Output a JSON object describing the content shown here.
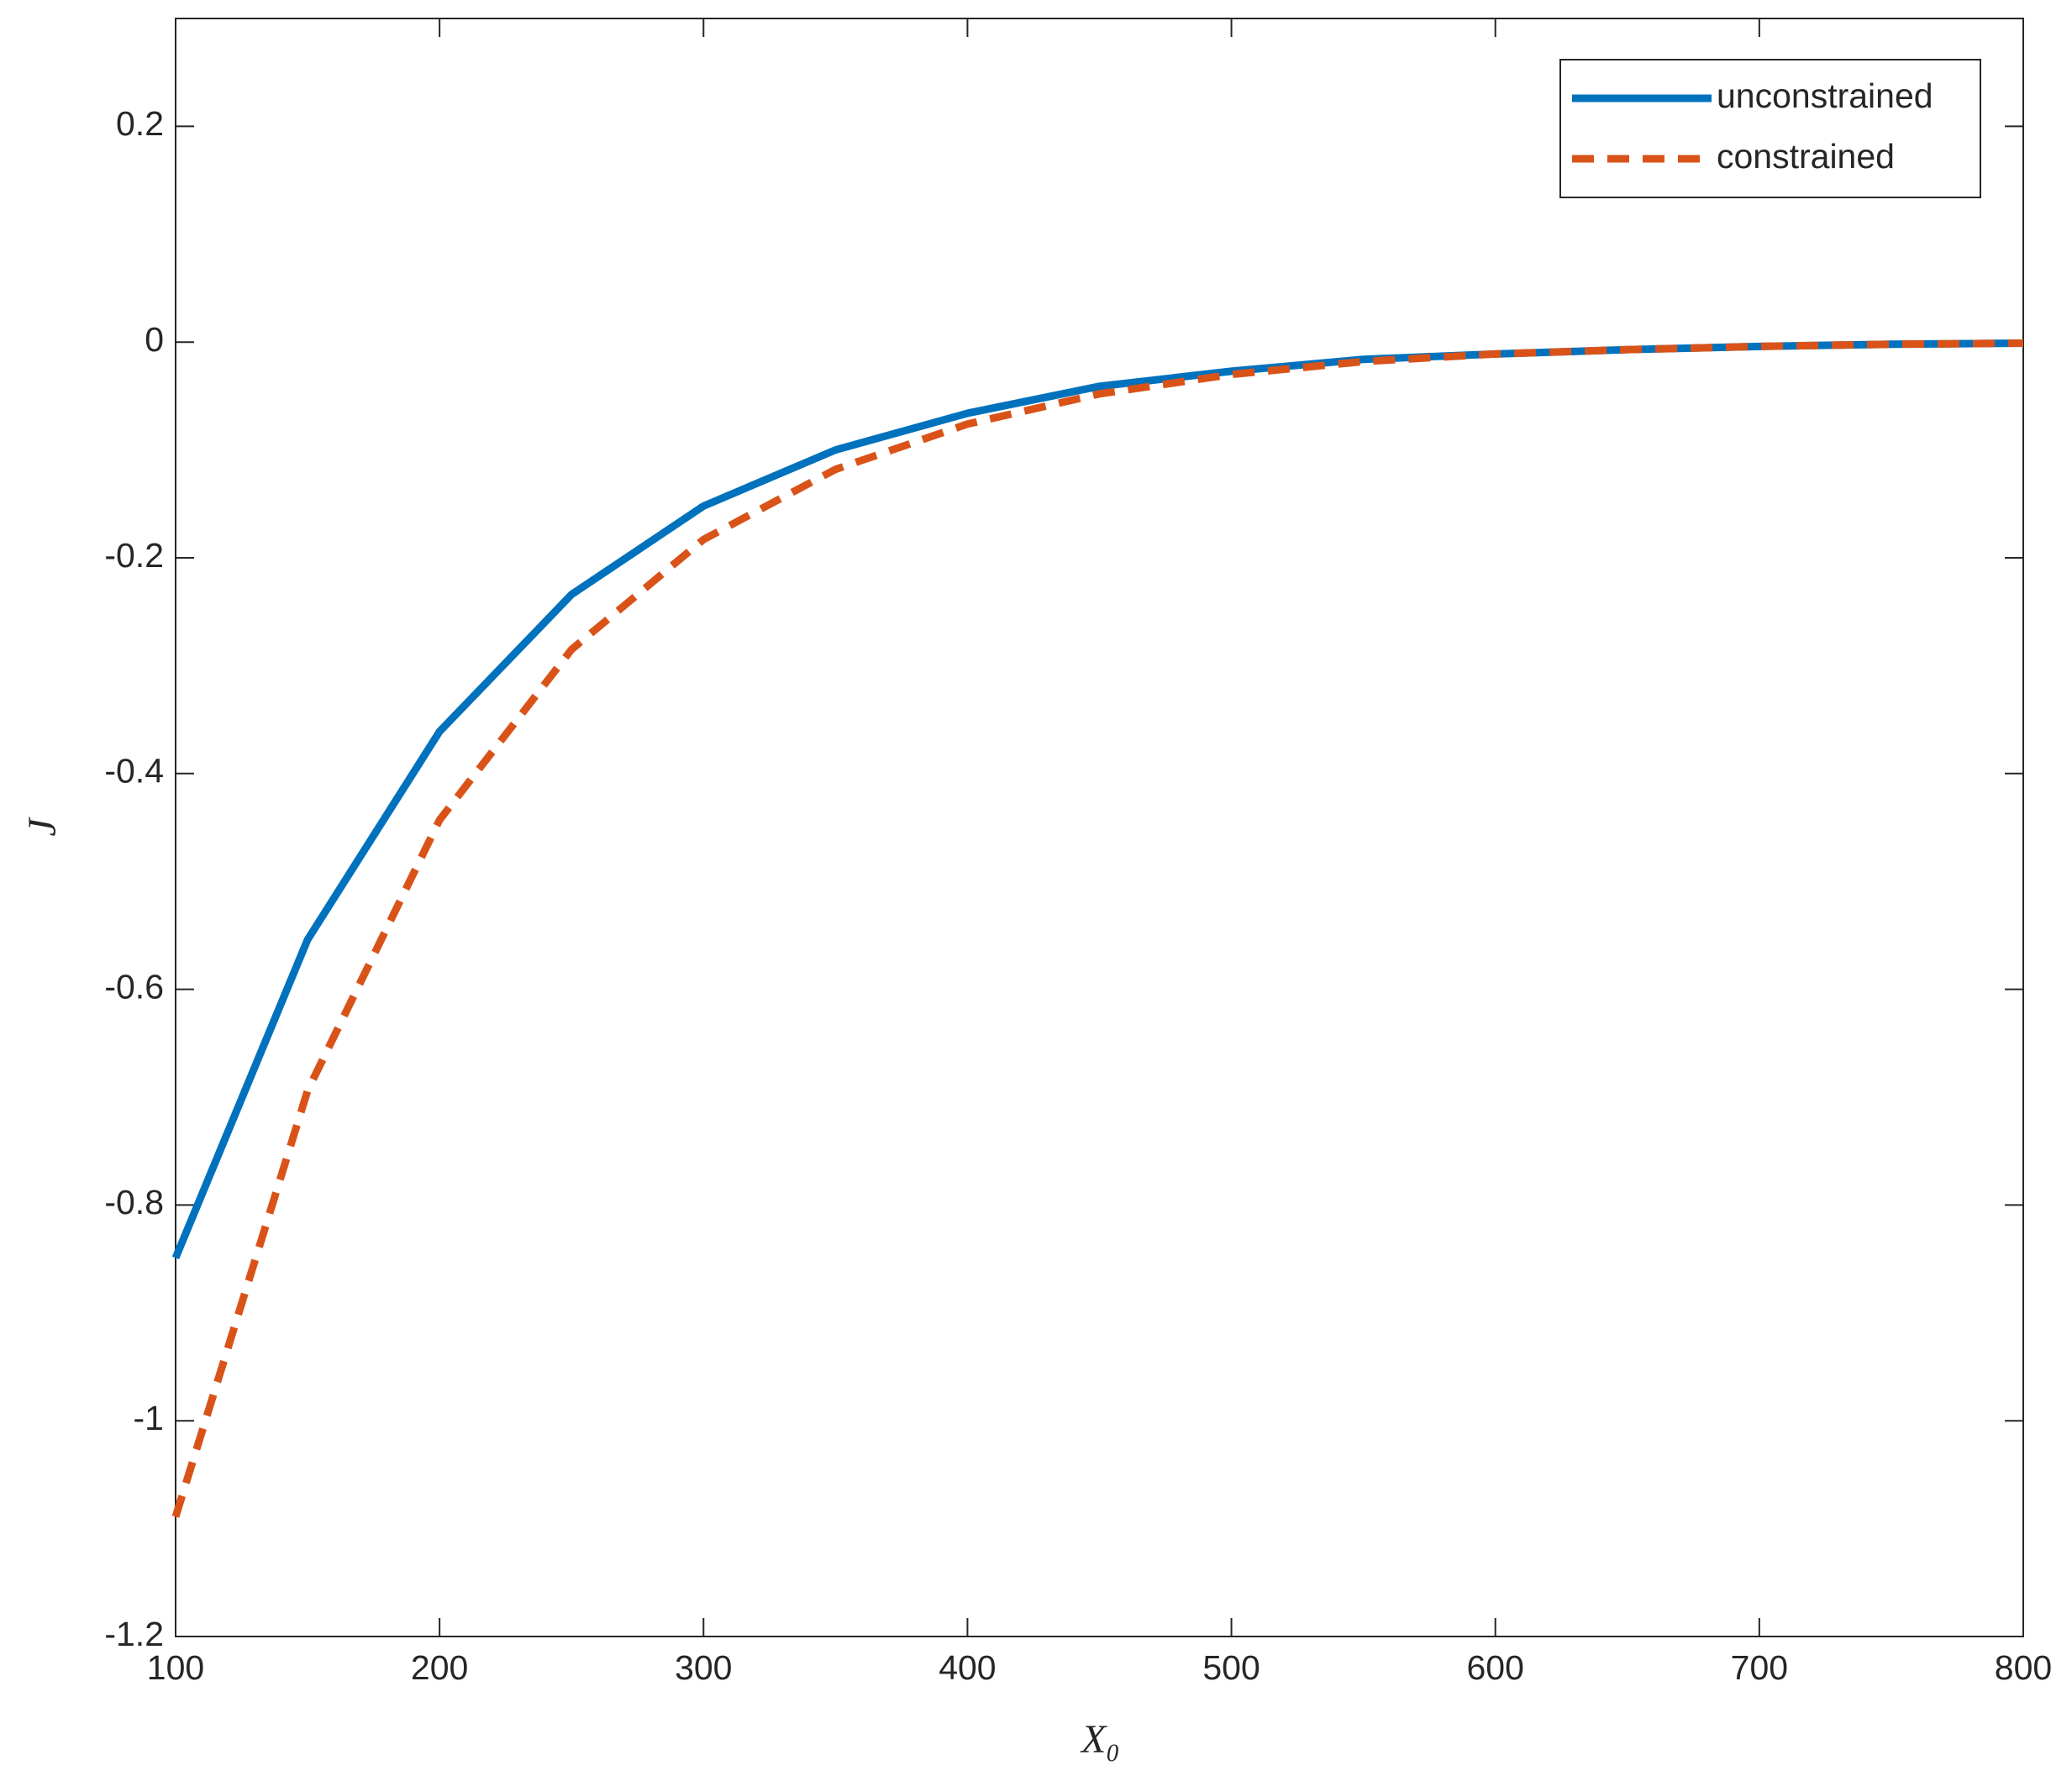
{
  "chart_data": {
    "type": "line",
    "x_label": "X₀",
    "y_label": "J",
    "x": [
      100,
      150,
      200,
      250,
      300,
      350,
      400,
      450,
      500,
      550,
      600,
      650,
      700,
      750,
      800
    ],
    "series": [
      {
        "name": "unconstrained",
        "color": "#0072bd",
        "dash": "solid",
        "values": [
          -0.849,
          -0.554,
          -0.361,
          -0.234,
          -0.152,
          -0.1,
          -0.066,
          -0.041,
          -0.027,
          -0.016,
          -0.011,
          -0.007,
          -0.004,
          -0.002,
          -0.001
        ]
      },
      {
        "name": "constrained",
        "color": "#d95319",
        "dash": "dashed",
        "values": [
          -1.089,
          -0.694,
          -0.443,
          -0.285,
          -0.183,
          -0.118,
          -0.076,
          -0.048,
          -0.03,
          -0.018,
          -0.011,
          -0.007,
          -0.004,
          -0.002,
          -0.001
        ]
      }
    ],
    "xlim": [
      100,
      800
    ],
    "xticks": [
      100,
      200,
      300,
      400,
      500,
      600,
      700,
      800
    ],
    "ylim": [
      -1.2,
      0.3
    ],
    "yticks": [
      -1.2,
      -1,
      -0.8,
      -0.6,
      -0.4,
      -0.2,
      0,
      0.2
    ],
    "grid": false,
    "legend": "upper right"
  }
}
